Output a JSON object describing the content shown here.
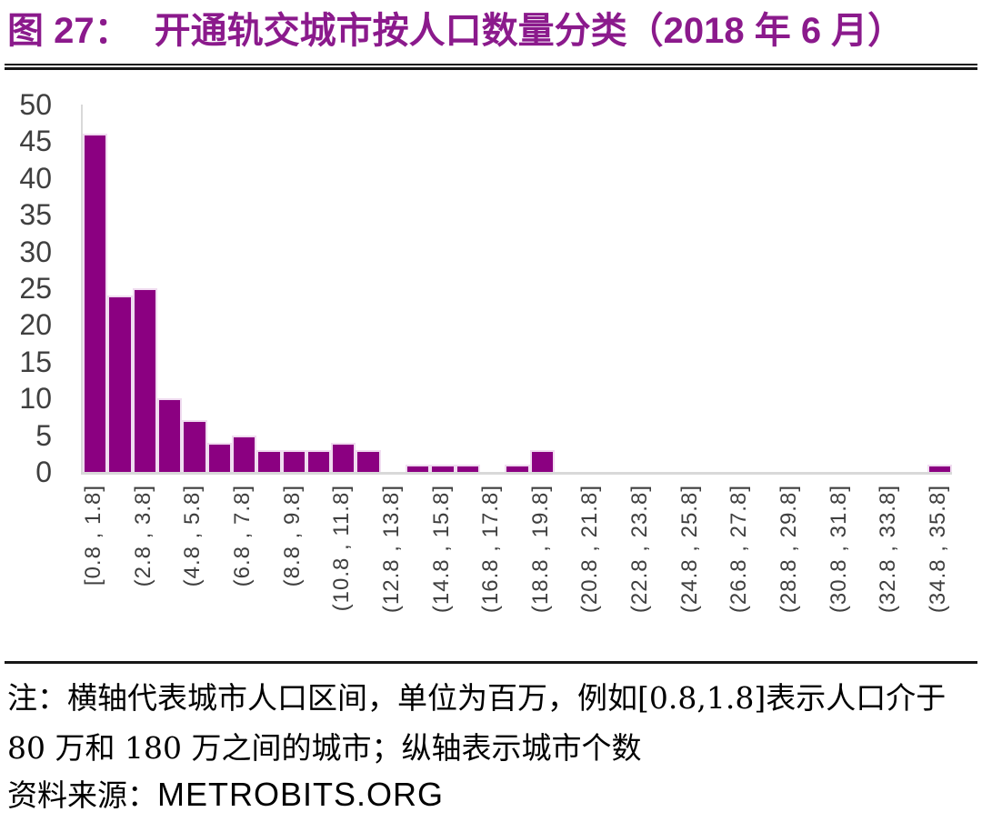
{
  "header": {
    "figure_label": "图 27：",
    "title": "开通轨交城市按人口数量分类（2018 年 6 月）",
    "title_color": "#8B1A8C"
  },
  "chart_data": {
    "type": "bar",
    "title": "开通轨交城市按人口数量分类（2018 年 6 月）",
    "bin_count": 35,
    "values": [
      46,
      24,
      25,
      10,
      7,
      4,
      5,
      3,
      3,
      3,
      4,
      3,
      0,
      1,
      1,
      1,
      0,
      1,
      3,
      0,
      0,
      0,
      0,
      0,
      0,
      0,
      0,
      0,
      0,
      0,
      0,
      0,
      0,
      0,
      1
    ],
    "x_tick_labels": [
      "[0.8 , 1.8]",
      "(2.8 , 3.8]",
      "(4.8 , 5.8]",
      "(6.8 , 7.8]",
      "(8.8 , 9.8]",
      "(10.8 , 11.8]",
      "(12.8 , 13.8]",
      "(14.8 , 15.8]",
      "(16.8 , 17.8]",
      "(18.8 , 19.8]",
      "(20.8 , 21.8]",
      "(22.8 , 23.8]",
      "(24.8 , 25.8]",
      "(26.8 , 27.8]",
      "(28.8 , 29.8]",
      "(30.8 , 31.8]",
      "(32.8 , 33.8]",
      "(34.8 , 35.8]"
    ],
    "x_ticks_every_n_bins": 2,
    "yticks": [
      0,
      5,
      10,
      15,
      20,
      25,
      30,
      35,
      40,
      45,
      50
    ],
    "ylim": [
      0,
      50
    ],
    "grid": false,
    "legend": false,
    "bar_color": "#8B0081",
    "bar_border_color": "#F0DCF0",
    "axis_line_color": "#D9D9D9",
    "tick_label_color": "#3F3F3F"
  },
  "footer": {
    "note": "注：横轴代表城市人口区间，单位为百万，例如[0.8,1.8]表示人口介于 80 万和 180 万之间的城市；纵轴表示城市个数",
    "source_label": "资料来源：",
    "source_name": "METROBITS.ORG"
  }
}
